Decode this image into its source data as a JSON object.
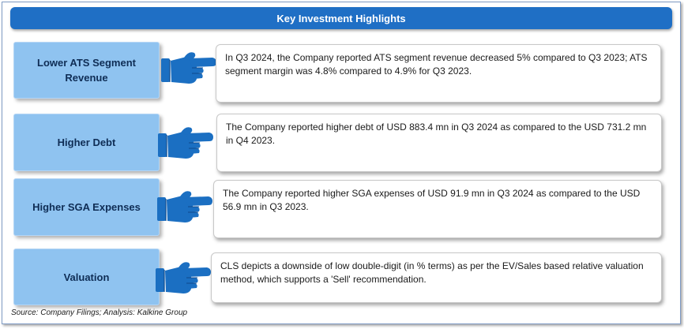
{
  "header": {
    "title": "Key Investment Highlights"
  },
  "rows": [
    {
      "label": "Lower ATS Segment Revenue",
      "text": "In Q3 2024, the Company reported  ATS segment revenue decreased 5% compared to Q3 2023; ATS segment margin was 4.8% compared to 4.9% for Q3 2023."
    },
    {
      "label": "Higher Debt",
      "text": "The Company reported higher debt of USD 883.4 mn in Q3 2024 as compared to the USD 731.2 mn in Q4 2023."
    },
    {
      "label": "Higher SGA Expenses",
      "text": "The Company reported higher SGA expenses of USD 91.9 mn in Q3 2024 as compared to the USD 56.9 mn in Q3 2023."
    },
    {
      "label": "Valuation",
      "text": "CLS depicts a downside of low double-digit (in % terms) as per the EV/Sales based relative valuation method, which supports a 'Sell' recommendation."
    }
  ],
  "footer": {
    "source": "Source: Company Filings; Analysis: Kalkine Group"
  },
  "colors": {
    "header_bg": "#1f6fc5",
    "label_bg": "#8fc3f0",
    "label_text": "#0f2d55",
    "hand": "#1b6fc2"
  },
  "icons": {
    "pointer": "pointing-hand-icon"
  }
}
